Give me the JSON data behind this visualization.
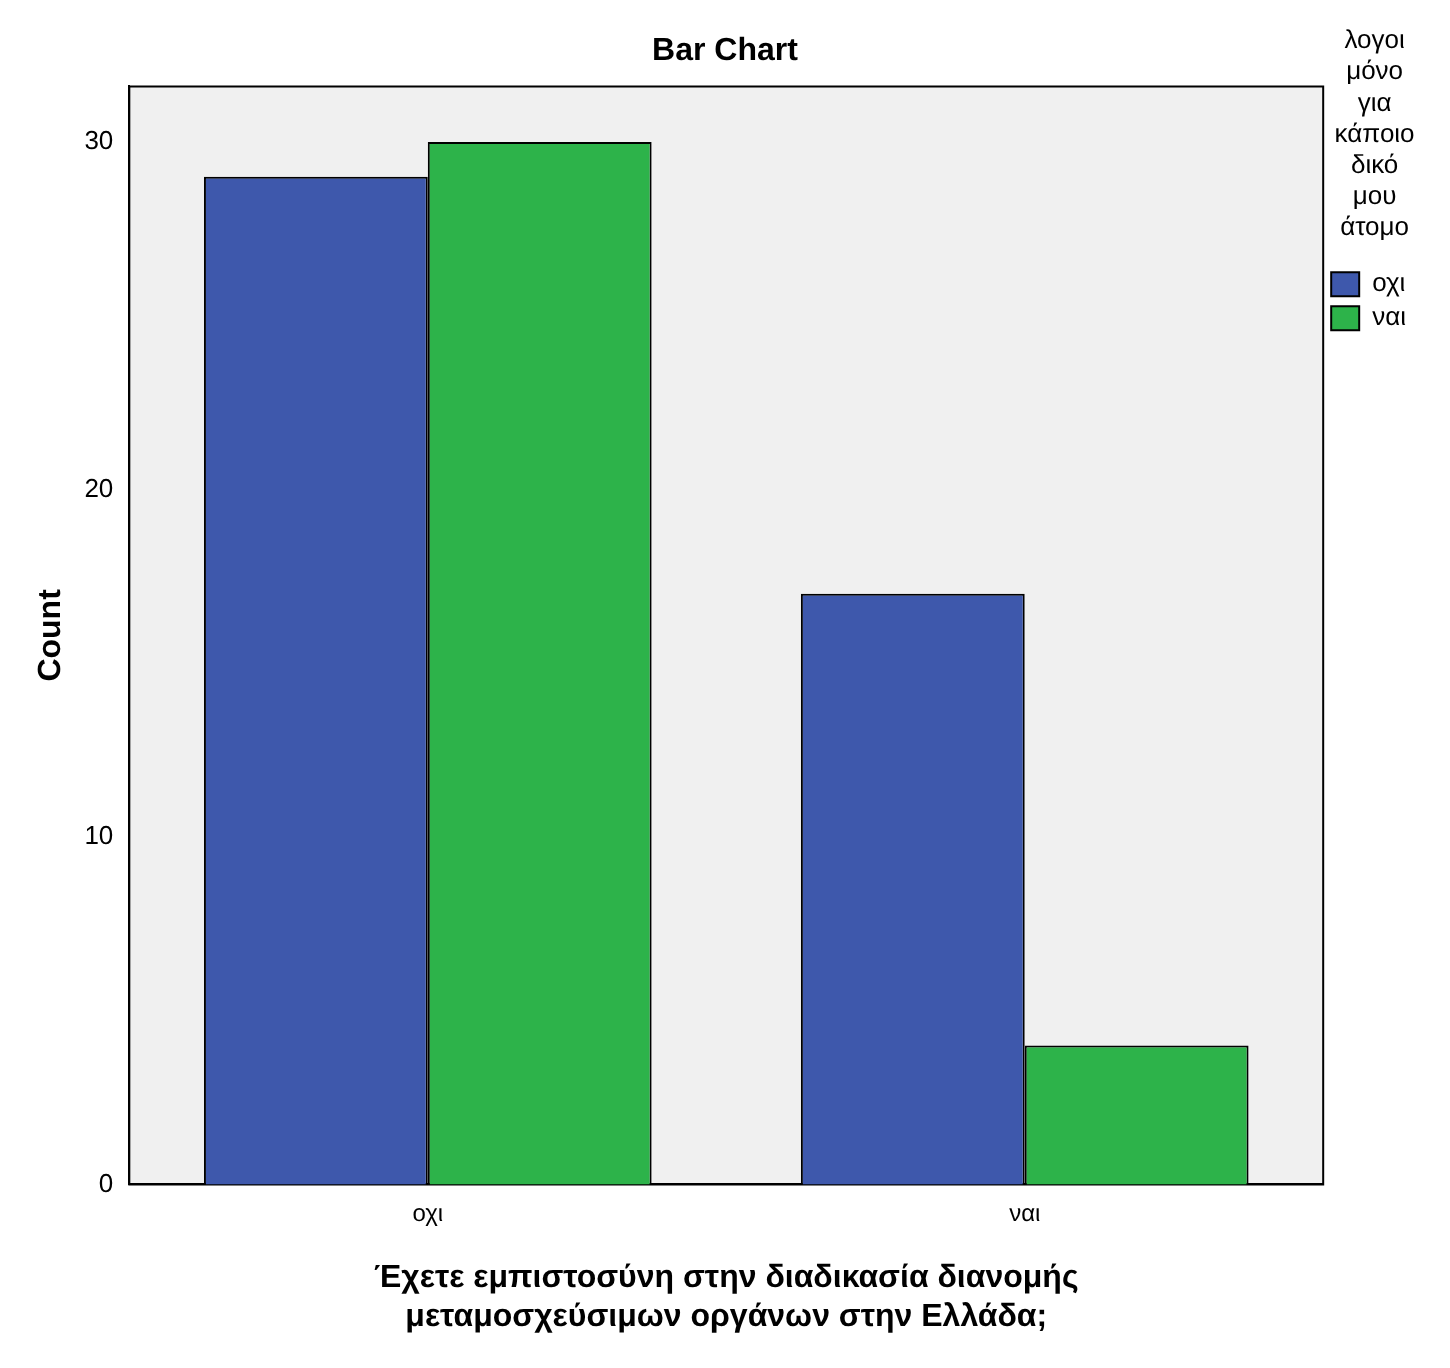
{
  "chart_data": {
    "type": "bar",
    "title": "Bar Chart",
    "xlabel": "Έχετε εμπιστοσύνη στην διαδικασία διανομής\nμεταμοσχεύσιμων οργάνων στην Ελλάδα;",
    "ylabel": "Count",
    "legend_title": "λογοι μόνο για κάποιο δικό μου άτομο",
    "categories": [
      "οχι",
      "ναι"
    ],
    "series": [
      {
        "name": "οχι",
        "color": "#3e58ac",
        "values": [
          29,
          17
        ]
      },
      {
        "name": "ναι",
        "color": "#2db34a",
        "values": [
          30,
          4
        ]
      }
    ],
    "ylim": [
      0,
      31.6
    ],
    "yticks": [
      0,
      10,
      20,
      30
    ],
    "grid": false,
    "legend": "top right"
  }
}
